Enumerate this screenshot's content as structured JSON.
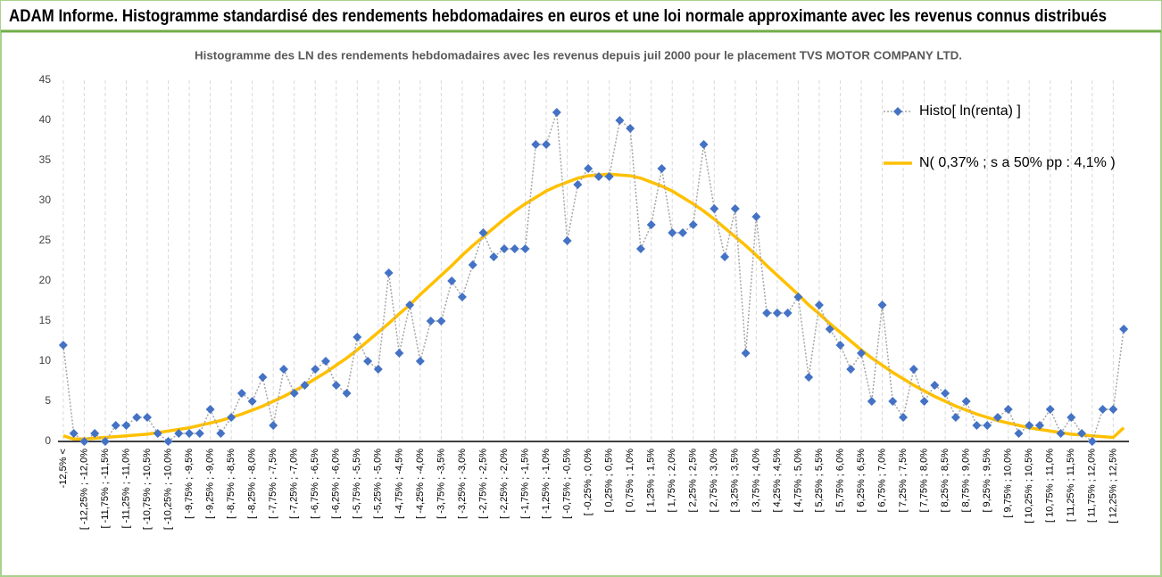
{
  "header": {
    "title": "ADAM Informe. Histogramme standardisé des rendements hebdomadaires en euros et une loi normale approximante avec les revenus connus distribués"
  },
  "chart_data": {
    "type": "line",
    "title": "Histogramme des LN des rendements hebdomadaires avec les revenus depuis juil 2000 pour le placement TVS MOTOR COMPANY LTD.",
    "categories": [
      "-12,5% <",
      null,
      "[ -12,25% ; -12,0%",
      null,
      "[ -11,75% ; -11,5%",
      null,
      "[ -11,25% ; -11,0%",
      null,
      "[ -10,75% ; -10,5%",
      null,
      "[ -10,25% ; -10,0%",
      null,
      "[ -9,75% ; -9,5%",
      null,
      "[ -9,25% ; -9,0%",
      null,
      "[ -8,75% ; -8,5%",
      null,
      "[ -8,25% ; -8,0%",
      null,
      "[ -7,75% ; -7,5%",
      null,
      "[ -7,25% ; -7,0%",
      null,
      "[ -6,75% ; -6,5%",
      null,
      "[ -6,25% ; -6,0%",
      null,
      "[ -5,75% ; -5,5%",
      null,
      "[ -5,25% ; -5,0%",
      null,
      "[ -4,75% ; -4,5%",
      null,
      "[ -4,25% ; -4,0%",
      null,
      "[ -3,75% ; -3,5%",
      null,
      "[ -3,25% ; -3,0%",
      null,
      "[ -2,75% ; -2,5%",
      null,
      "[ -2,25% ; -2,0%",
      null,
      "[ -1,75% ; -1,5%",
      null,
      "[ -1,25% ; -1,0%",
      null,
      "[ -0,75% ; -0,5%",
      null,
      "[ -0,25% ; 0,0%",
      null,
      "[ 0,25% ; 0,5%",
      null,
      "[ 0,75% ; 1,0%",
      null,
      "[ 1,25% ; 1,5%",
      null,
      "[ 1,75% ; 2,0%",
      null,
      "[ 2,25% ; 2,5%",
      null,
      "[ 2,75% ; 3,0%",
      null,
      "[ 3,25% ; 3,5%",
      null,
      "[ 3,75% ; 4,0%",
      null,
      "[ 4,25% ; 4,5%",
      null,
      "[ 4,75% ; 5,0%",
      null,
      "[ 5,25% ; 5,5%",
      null,
      "[ 5,75% ; 6,0%",
      null,
      "[ 6,25% ; 6,5%",
      null,
      "[ 6,75% ; 7,0%",
      null,
      "[ 7,25% ; 7,5%",
      null,
      "[ 7,75% ; 8,0%",
      null,
      "[ 8,25% ; 8,5%",
      null,
      "[ 8,75% ; 9,0%",
      null,
      "[ 9,25% ; 9,5%",
      null,
      "[ 9,75% ; 10,0%",
      null,
      "[ 10,25% ; 10,5%",
      null,
      "[ 10,75% ; 11,0%",
      null,
      "[ 11,25% ; 11,5%",
      null,
      "[ 11,75% ; 12,0%",
      null,
      "[ 12,25% ; 12,5%",
      null
    ],
    "series": [
      {
        "name": "Histo[ ln(renta) ]",
        "color": "#4472c4",
        "line_color": "#a6a6a6",
        "dash": true,
        "marker": "diamond",
        "values": [
          12,
          1,
          0,
          1,
          0,
          2,
          2,
          3,
          3,
          1,
          0,
          1,
          1,
          1,
          4,
          1,
          3,
          6,
          5,
          8,
          2,
          9,
          6,
          7,
          9,
          10,
          7,
          6,
          13,
          10,
          9,
          21,
          11,
          17,
          10,
          15,
          15,
          20,
          18,
          22,
          26,
          23,
          24,
          24,
          24,
          37,
          37,
          41,
          25,
          32,
          34,
          33,
          33,
          40,
          39,
          24,
          27,
          34,
          26,
          26,
          27,
          37,
          29,
          23,
          29,
          11,
          28,
          16,
          16,
          16,
          18,
          8,
          17,
          14,
          12,
          9,
          11,
          5,
          17,
          5,
          3,
          9,
          5,
          7,
          6,
          3,
          5,
          2,
          2,
          3,
          4,
          1,
          2,
          2,
          4,
          1,
          3,
          1,
          0,
          4,
          4,
          14
        ]
      },
      {
        "name": "N( 0,37% ; s a 50% pp : 4,1% )",
        "color": "#ffc000",
        "dash": false,
        "marker": "none",
        "values": [
          0.7,
          0.3,
          0.3,
          0.4,
          0.5,
          0.6,
          0.7,
          0.8,
          0.9,
          1.1,
          1.3,
          1.5,
          1.7,
          2.0,
          2.3,
          2.6,
          3.0,
          3.4,
          3.9,
          4.4,
          5.0,
          5.6,
          6.3,
          7.0,
          7.8,
          8.6,
          9.5,
          10.4,
          11.4,
          12.5,
          13.6,
          14.7,
          15.9,
          17.0,
          18.3,
          19.5,
          20.7,
          21.9,
          23.2,
          24.4,
          25.5,
          26.6,
          27.7,
          28.7,
          29.6,
          30.4,
          31.2,
          31.8,
          32.3,
          32.8,
          33.1,
          33.2,
          33.3,
          33.2,
          33.1,
          32.8,
          32.3,
          31.8,
          31.2,
          30.4,
          29.6,
          28.7,
          27.7,
          26.6,
          25.5,
          24.4,
          23.2,
          21.9,
          20.7,
          19.5,
          18.3,
          17.0,
          15.9,
          14.7,
          13.6,
          12.5,
          11.4,
          10.4,
          9.5,
          8.6,
          7.8,
          7.0,
          6.3,
          5.6,
          5.0,
          4.4,
          3.9,
          3.4,
          3.0,
          2.6,
          2.3,
          2.0,
          1.7,
          1.5,
          1.3,
          1.1,
          0.9,
          0.8,
          0.7,
          0.6,
          0.5,
          1.7
        ]
      }
    ],
    "ylim": [
      0,
      45
    ],
    "yticks": [
      0,
      5,
      10,
      15,
      20,
      25,
      30,
      35,
      40,
      45
    ],
    "grid": "x"
  }
}
